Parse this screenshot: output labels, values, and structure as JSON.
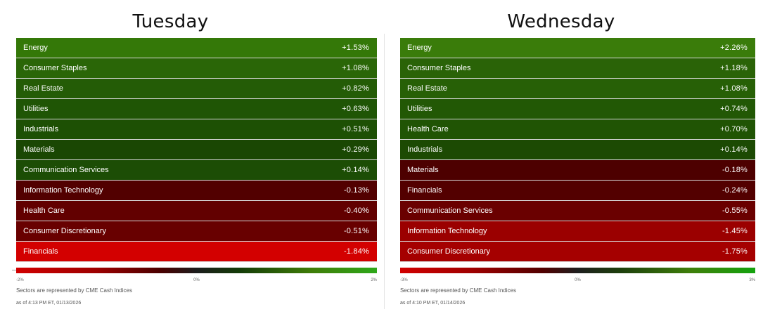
{
  "chart_data": [
    {
      "type": "table",
      "title": "Tuesday",
      "sectors": [
        {
          "name": "Energy",
          "change_label": "+1.53%",
          "change": 1.53,
          "color": "#347808"
        },
        {
          "name": "Consumer Staples",
          "change_label": "+1.08%",
          "change": 1.08,
          "color": "#2a6607"
        },
        {
          "name": "Real Estate",
          "change_label": "+0.82%",
          "change": 0.82,
          "color": "#245c06"
        },
        {
          "name": "Utilities",
          "change_label": "+0.63%",
          "change": 0.63,
          "color": "#1f5505"
        },
        {
          "name": "Industrials",
          "change_label": "+0.51%",
          "change": 0.51,
          "color": "#1d5004"
        },
        {
          "name": "Materials",
          "change_label": "+0.29%",
          "change": 0.29,
          "color": "#1a4703"
        },
        {
          "name": "Communication Services",
          "change_label": "+0.14%",
          "change": 0.14,
          "color": "#1c4d05"
        },
        {
          "name": "Information Technology",
          "change_label": "-0.13%",
          "change": -0.13,
          "color": "#520000"
        },
        {
          "name": "Health Care",
          "change_label": "-0.40%",
          "change": -0.4,
          "color": "#620000"
        },
        {
          "name": "Consumer Discretionary",
          "change_label": "-0.51%",
          "change": -0.51,
          "color": "#680000"
        },
        {
          "name": "Financials",
          "change_label": "-1.84%",
          "change": -1.84,
          "color": "#d30000"
        }
      ],
      "scale": {
        "min_label": "-2%",
        "mid_label": "0%",
        "max_label": "2%"
      },
      "source_note": "Sectors are represented by CME Cash Indices",
      "timestamp": "as of 4:13 PM ET, 01/13/2026"
    },
    {
      "type": "table",
      "title": "Wednesday",
      "sectors": [
        {
          "name": "Energy",
          "change_label": "+2.26%",
          "change": 2.26,
          "color": "#3a7c0a"
        },
        {
          "name": "Consumer Staples",
          "change_label": "+1.18%",
          "change": 1.18,
          "color": "#2a6307"
        },
        {
          "name": "Real Estate",
          "change_label": "+1.08%",
          "change": 1.08,
          "color": "#276006"
        },
        {
          "name": "Utilities",
          "change_label": "+0.74%",
          "change": 0.74,
          "color": "#225805"
        },
        {
          "name": "Health Care",
          "change_label": "+0.70%",
          "change": 0.7,
          "color": "#205404"
        },
        {
          "name": "Industrials",
          "change_label": "+0.14%",
          "change": 0.14,
          "color": "#1c4a03"
        },
        {
          "name": "Materials",
          "change_label": "-0.18%",
          "change": -0.18,
          "color": "#4d0000"
        },
        {
          "name": "Financials",
          "change_label": "-0.24%",
          "change": -0.24,
          "color": "#530000"
        },
        {
          "name": "Communication Services",
          "change_label": "-0.55%",
          "change": -0.55,
          "color": "#6a0000"
        },
        {
          "name": "Information Technology",
          "change_label": "-1.45%",
          "change": -1.45,
          "color": "#9b0000"
        },
        {
          "name": "Consumer Discretionary",
          "change_label": "-1.75%",
          "change": -1.75,
          "color": "#a50000"
        }
      ],
      "scale": {
        "min_label": "-3%",
        "mid_label": "0%",
        "max_label": "3%"
      },
      "source_note": "Sectors are represented by CME Cash Indices",
      "timestamp": "as of 4:10 PM ET, 01/14/2026"
    }
  ]
}
